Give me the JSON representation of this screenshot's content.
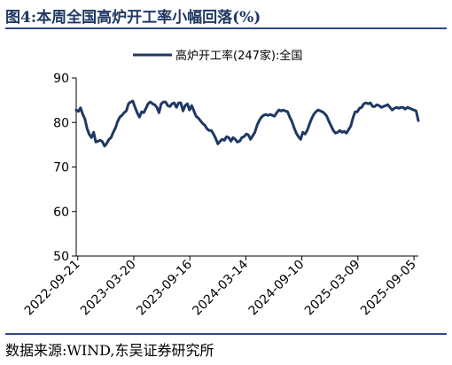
{
  "figure": {
    "title": "图4:本周全国高炉开工率小幅回落(%)",
    "source": "数据来源:WIND,东吴证券研究所"
  },
  "colors": {
    "series": "#1f3864",
    "frame": "#2e4a86",
    "text": "#000000"
  },
  "chart_data": {
    "type": "line",
    "title": "",
    "xlabel": "",
    "ylabel": "",
    "ylim": [
      50,
      90
    ],
    "yticks": [
      50,
      60,
      70,
      80,
      90
    ],
    "xlim": [
      "2022-09-16",
      "2025-09-19"
    ],
    "xticks": [
      "2022-09-21",
      "2023-03-20",
      "2023-09-16",
      "2024-03-14",
      "2024-09-10",
      "2025-03-09",
      "2025-09-05"
    ],
    "grid": false,
    "legend_position": "top-center",
    "series": [
      {
        "name": "高炉开工率(247家):全国",
        "color": "#1f3864",
        "points": [
          [
            "2022-09-16",
            82.8
          ],
          [
            "2022-09-23",
            82.5
          ],
          [
            "2022-09-30",
            83.3
          ],
          [
            "2022-10-07",
            81.8
          ],
          [
            "2022-10-14",
            80.8
          ],
          [
            "2022-10-21",
            78.6
          ],
          [
            "2022-10-28",
            77.3
          ],
          [
            "2022-11-04",
            76.6
          ],
          [
            "2022-11-11",
            77.8
          ],
          [
            "2022-11-18",
            75.6
          ],
          [
            "2022-11-25",
            75.8
          ],
          [
            "2022-12-02",
            76.0
          ],
          [
            "2022-12-09",
            75.7
          ],
          [
            "2022-12-16",
            74.7
          ],
          [
            "2022-12-23",
            75.3
          ],
          [
            "2022-12-30",
            76.2
          ],
          [
            "2023-01-06",
            76.6
          ],
          [
            "2023-01-13",
            77.8
          ],
          [
            "2023-01-20",
            78.8
          ],
          [
            "2023-01-27",
            80.2
          ],
          [
            "2023-02-03",
            81.2
          ],
          [
            "2023-02-10",
            81.6
          ],
          [
            "2023-02-17",
            82.2
          ],
          [
            "2023-02-24",
            82.6
          ],
          [
            "2023-03-03",
            84.2
          ],
          [
            "2023-03-10",
            84.6
          ],
          [
            "2023-03-17",
            84.8
          ],
          [
            "2023-03-24",
            83.4
          ],
          [
            "2023-03-31",
            82.2
          ],
          [
            "2023-04-07",
            81.2
          ],
          [
            "2023-04-14",
            82.4
          ],
          [
            "2023-04-21",
            82.2
          ],
          [
            "2023-04-28",
            83.2
          ],
          [
            "2023-05-05",
            84.2
          ],
          [
            "2023-05-12",
            84.6
          ],
          [
            "2023-05-19",
            84.2
          ],
          [
            "2023-05-26",
            84.0
          ],
          [
            "2023-06-02",
            83.4
          ],
          [
            "2023-06-09",
            82.2
          ],
          [
            "2023-06-16",
            84.2
          ],
          [
            "2023-06-23",
            84.6
          ],
          [
            "2023-06-30",
            84.6
          ],
          [
            "2023-07-07",
            83.8
          ],
          [
            "2023-07-14",
            83.6
          ],
          [
            "2023-07-21",
            84.2
          ],
          [
            "2023-07-28",
            84.4
          ],
          [
            "2023-08-04",
            83.4
          ],
          [
            "2023-08-11",
            84.4
          ],
          [
            "2023-08-18",
            84.4
          ],
          [
            "2023-08-25",
            82.6
          ],
          [
            "2023-09-01",
            83.8
          ],
          [
            "2023-09-08",
            84.2
          ],
          [
            "2023-09-15",
            82.8
          ],
          [
            "2023-09-22",
            83.8
          ],
          [
            "2023-09-29",
            82.6
          ],
          [
            "2023-10-06",
            81.4
          ],
          [
            "2023-10-13",
            81.0
          ],
          [
            "2023-10-20",
            80.4
          ],
          [
            "2023-10-27",
            79.8
          ],
          [
            "2023-11-03",
            79.4
          ],
          [
            "2023-11-10",
            78.6
          ],
          [
            "2023-11-17",
            78.2
          ],
          [
            "2023-11-24",
            78.2
          ],
          [
            "2023-12-01",
            77.4
          ],
          [
            "2023-12-08",
            76.4
          ],
          [
            "2023-12-15",
            75.2
          ],
          [
            "2023-12-22",
            75.8
          ],
          [
            "2023-12-29",
            76.2
          ],
          [
            "2024-01-05",
            76.0
          ],
          [
            "2024-01-12",
            76.8
          ],
          [
            "2024-01-19",
            76.6
          ],
          [
            "2024-01-26",
            75.8
          ],
          [
            "2024-02-02",
            76.6
          ],
          [
            "2024-02-09",
            76.2
          ],
          [
            "2024-02-16",
            75.6
          ],
          [
            "2024-02-23",
            75.8
          ],
          [
            "2024-03-01",
            76.6
          ],
          [
            "2024-03-08",
            76.8
          ],
          [
            "2024-03-15",
            77.4
          ],
          [
            "2024-03-22",
            77.2
          ],
          [
            "2024-03-29",
            76.2
          ],
          [
            "2024-04-05",
            77.0
          ],
          [
            "2024-04-12",
            77.8
          ],
          [
            "2024-04-19",
            79.4
          ],
          [
            "2024-04-26",
            80.4
          ],
          [
            "2024-05-03",
            81.2
          ],
          [
            "2024-05-10",
            81.6
          ],
          [
            "2024-05-17",
            81.8
          ],
          [
            "2024-05-24",
            81.6
          ],
          [
            "2024-05-31",
            81.8
          ],
          [
            "2024-06-07",
            81.6
          ],
          [
            "2024-06-14",
            81.4
          ],
          [
            "2024-06-21",
            82.2
          ],
          [
            "2024-06-28",
            82.8
          ],
          [
            "2024-07-05",
            82.6
          ],
          [
            "2024-07-12",
            82.8
          ],
          [
            "2024-07-19",
            82.6
          ],
          [
            "2024-07-26",
            82.4
          ],
          [
            "2024-08-02",
            81.2
          ],
          [
            "2024-08-09",
            80.2
          ],
          [
            "2024-08-16",
            78.8
          ],
          [
            "2024-08-23",
            77.6
          ],
          [
            "2024-08-30",
            76.8
          ],
          [
            "2024-09-06",
            76.2
          ],
          [
            "2024-09-13",
            77.8
          ],
          [
            "2024-09-20",
            77.4
          ],
          [
            "2024-09-27",
            78.2
          ],
          [
            "2024-10-04",
            79.6
          ],
          [
            "2024-10-11",
            80.8
          ],
          [
            "2024-10-18",
            81.8
          ],
          [
            "2024-10-25",
            82.4
          ],
          [
            "2024-11-01",
            82.8
          ],
          [
            "2024-11-08",
            82.6
          ],
          [
            "2024-11-15",
            82.4
          ],
          [
            "2024-11-22",
            82.0
          ],
          [
            "2024-11-29",
            81.4
          ],
          [
            "2024-12-06",
            80.2
          ],
          [
            "2024-12-13",
            79.2
          ],
          [
            "2024-12-20",
            78.2
          ],
          [
            "2024-12-27",
            77.6
          ],
          [
            "2025-01-03",
            77.8
          ],
          [
            "2025-01-10",
            78.2
          ],
          [
            "2025-01-17",
            77.8
          ],
          [
            "2025-01-24",
            78.0
          ],
          [
            "2025-01-31",
            77.6
          ],
          [
            "2025-02-07",
            78.4
          ],
          [
            "2025-02-14",
            79.2
          ],
          [
            "2025-02-21",
            81.0
          ],
          [
            "2025-02-28",
            82.4
          ],
          [
            "2025-03-07",
            82.4
          ],
          [
            "2025-03-14",
            83.2
          ],
          [
            "2025-03-21",
            83.4
          ],
          [
            "2025-03-28",
            84.2
          ],
          [
            "2025-04-04",
            84.4
          ],
          [
            "2025-04-11",
            84.2
          ],
          [
            "2025-04-18",
            84.4
          ],
          [
            "2025-04-25",
            83.6
          ],
          [
            "2025-05-02",
            83.6
          ],
          [
            "2025-05-09",
            84.0
          ],
          [
            "2025-05-16",
            83.8
          ],
          [
            "2025-05-23",
            83.4
          ],
          [
            "2025-05-30",
            83.6
          ],
          [
            "2025-06-06",
            83.8
          ],
          [
            "2025-06-13",
            84.0
          ],
          [
            "2025-06-20",
            83.4
          ],
          [
            "2025-06-27",
            82.8
          ],
          [
            "2025-07-04",
            83.2
          ],
          [
            "2025-07-11",
            83.4
          ],
          [
            "2025-07-18",
            83.2
          ],
          [
            "2025-07-25",
            83.4
          ],
          [
            "2025-08-01",
            83.4
          ],
          [
            "2025-08-08",
            83.0
          ],
          [
            "2025-08-15",
            83.4
          ],
          [
            "2025-08-22",
            83.2
          ],
          [
            "2025-08-29",
            83.0
          ],
          [
            "2025-09-05",
            82.8
          ],
          [
            "2025-09-12",
            82.6
          ],
          [
            "2025-09-19",
            80.4
          ]
        ]
      }
    ]
  }
}
